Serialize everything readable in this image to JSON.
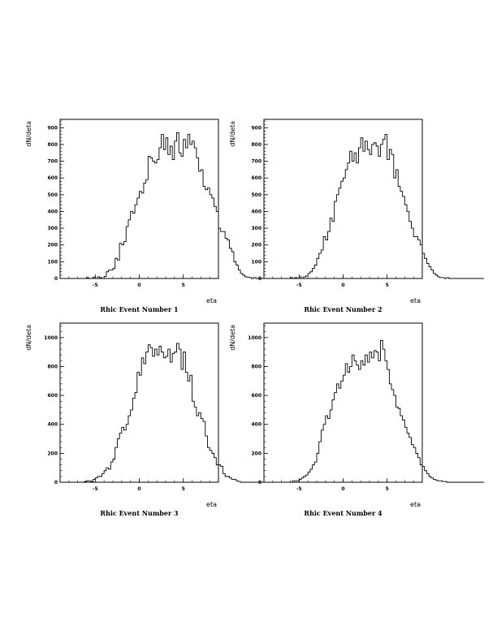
{
  "chart_data": [
    {
      "type": "histogram",
      "caption": "Rhic Event Number 1",
      "xlabel": "eta",
      "ylabel": "dN/deta",
      "xlim": [
        -9,
        9
      ],
      "ylim": [
        0,
        950
      ],
      "yticks": [
        0,
        100,
        200,
        300,
        400,
        500,
        600,
        700,
        800,
        900
      ],
      "xticks": [
        -5,
        0,
        5
      ],
      "bin_width": 0.25,
      "values": [
        0,
        0,
        0,
        0,
        0,
        0,
        0,
        0,
        0,
        0,
        0,
        0,
        5,
        0,
        0,
        8,
        0,
        10,
        5,
        0,
        12,
        40,
        50,
        50,
        60,
        120,
        110,
        210,
        200,
        220,
        310,
        350,
        400,
        390,
        440,
        480,
        520,
        510,
        570,
        590,
        730,
        720,
        700,
        690,
        710,
        780,
        860,
        770,
        840,
        740,
        790,
        710,
        820,
        870,
        750,
        730,
        830,
        780,
        860,
        800,
        820,
        780,
        720,
        640,
        650,
        550,
        530,
        540,
        500,
        480,
        430,
        400,
        300,
        280,
        280,
        240,
        230,
        180,
        160,
        100,
        80,
        50,
        30,
        20,
        10,
        8,
        5,
        0,
        5,
        0,
        0,
        0,
        0,
        0,
        0,
        0,
        0,
        0,
        0,
        0
      ]
    },
    {
      "type": "histogram",
      "caption": "Rhic Event Number 2",
      "xlabel": "eta",
      "ylabel": "dN/deta",
      "xlim": [
        -9,
        9
      ],
      "ylim": [
        0,
        950
      ],
      "yticks": [
        0,
        100,
        200,
        300,
        400,
        500,
        600,
        700,
        800,
        900
      ],
      "xticks": [
        -5,
        0,
        5
      ],
      "bin_width": 0.25,
      "values": [
        0,
        0,
        0,
        0,
        0,
        0,
        0,
        0,
        0,
        0,
        0,
        0,
        5,
        0,
        5,
        0,
        10,
        0,
        10,
        15,
        30,
        40,
        60,
        80,
        120,
        150,
        170,
        250,
        230,
        280,
        360,
        340,
        460,
        500,
        540,
        580,
        600,
        650,
        690,
        760,
        700,
        750,
        690,
        780,
        840,
        760,
        820,
        770,
        740,
        800,
        810,
        790,
        730,
        800,
        830,
        860,
        710,
        770,
        740,
        600,
        650,
        550,
        520,
        490,
        440,
        400,
        340,
        300,
        250,
        250,
        230,
        200,
        150,
        120,
        90,
        70,
        50,
        30,
        20,
        10,
        5,
        5,
        0,
        5,
        0,
        0,
        0,
        0,
        0,
        0,
        0,
        0,
        0,
        0,
        0,
        0,
        0,
        0,
        0,
        0
      ]
    },
    {
      "type": "histogram",
      "caption": "Rhic Event Number 3",
      "xlabel": "eta",
      "ylabel": "dN/deta",
      "xlim": [
        -9,
        9
      ],
      "ylim": [
        0,
        1100
      ],
      "yticks": [
        0,
        200,
        400,
        600,
        800,
        1000
      ],
      "xticks": [
        -5,
        0,
        5
      ],
      "bin_width": 0.25,
      "values": [
        0,
        0,
        0,
        0,
        0,
        0,
        0,
        0,
        0,
        0,
        0,
        5,
        10,
        10,
        5,
        20,
        30,
        40,
        40,
        60,
        80,
        100,
        90,
        140,
        160,
        240,
        300,
        340,
        380,
        360,
        400,
        460,
        500,
        580,
        620,
        760,
        740,
        860,
        820,
        900,
        950,
        930,
        870,
        920,
        880,
        940,
        900,
        860,
        870,
        920,
        830,
        890,
        900,
        960,
        920,
        780,
        900,
        760,
        700,
        740,
        560,
        520,
        460,
        480,
        440,
        420,
        320,
        240,
        220,
        200,
        170,
        120,
        120,
        110,
        60,
        40,
        40,
        30,
        20,
        20,
        10,
        5,
        0,
        0,
        0,
        0,
        0,
        0,
        0,
        0,
        0,
        0,
        0,
        0,
        0,
        0,
        0,
        0,
        0,
        0
      ]
    },
    {
      "type": "histogram",
      "caption": "Rhic Event Number 4",
      "xlabel": "eta",
      "ylabel": "dN/deta",
      "xlim": [
        -9,
        9
      ],
      "ylim": [
        0,
        1100
      ],
      "yticks": [
        0,
        200,
        400,
        600,
        800,
        1000
      ],
      "xticks": [
        -5,
        0,
        5
      ],
      "bin_width": 0.25,
      "values": [
        0,
        0,
        0,
        0,
        0,
        0,
        0,
        0,
        0,
        0,
        0,
        0,
        0,
        10,
        10,
        10,
        20,
        30,
        40,
        50,
        70,
        90,
        120,
        140,
        200,
        280,
        360,
        400,
        460,
        440,
        500,
        570,
        620,
        680,
        650,
        700,
        740,
        820,
        760,
        800,
        880,
        840,
        810,
        780,
        840,
        810,
        880,
        830,
        900,
        860,
        910,
        900,
        840,
        980,
        920,
        840,
        780,
        680,
        640,
        600,
        520,
        510,
        460,
        430,
        380,
        340,
        310,
        260,
        240,
        200,
        170,
        120,
        110,
        80,
        60,
        40,
        30,
        20,
        15,
        10,
        10,
        5,
        5,
        0,
        0,
        0,
        0,
        0,
        0,
        0,
        0,
        0,
        0,
        0,
        0,
        0,
        0,
        0,
        0,
        0
      ]
    }
  ]
}
